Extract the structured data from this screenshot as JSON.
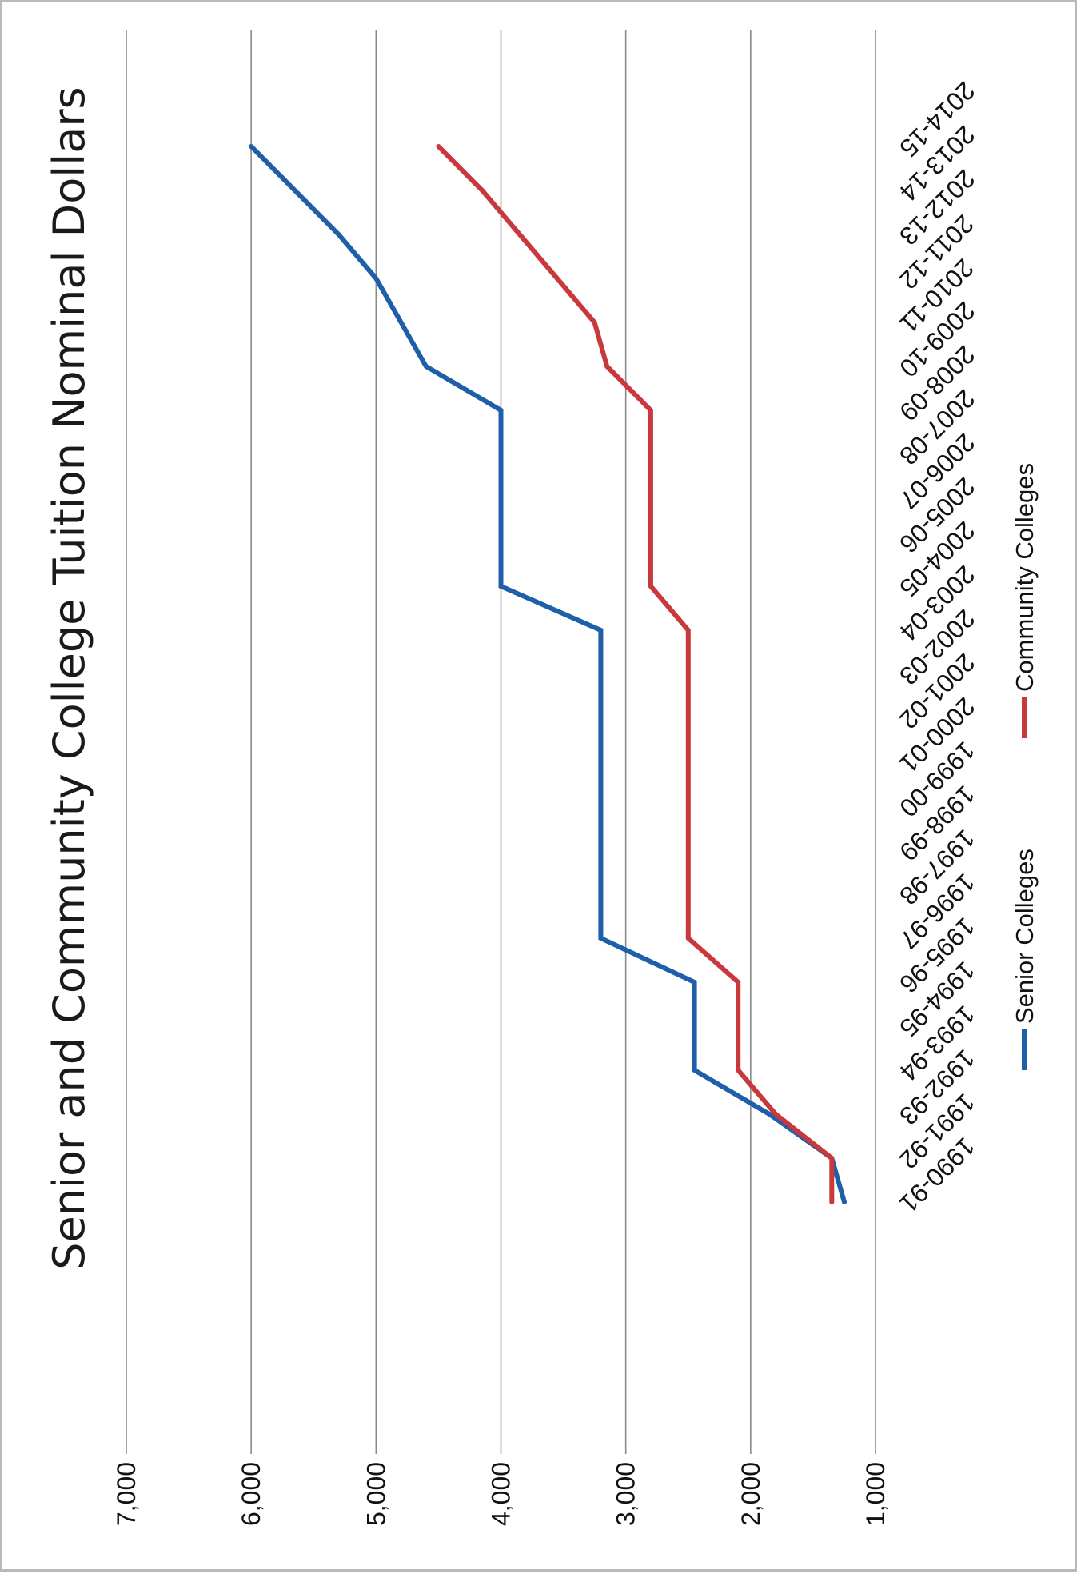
{
  "chart_data": {
    "type": "line",
    "title": "Senior and Community College Tuition Nominal Dollars",
    "xlabel": "",
    "ylabel": "",
    "ylim": [
      1000,
      7000
    ],
    "y_ticks": [
      "1,000",
      "2,000",
      "3,000",
      "4,000",
      "5,000",
      "6,000",
      "7,000"
    ],
    "y_tick_values": [
      1000,
      2000,
      3000,
      4000,
      5000,
      6000,
      7000
    ],
    "grid": true,
    "legend_position": "bottom",
    "orientation": "rotated 90 degrees counter-clockwise",
    "categories": [
      "1990-91",
      "1991-92",
      "1992-93",
      "1993-94",
      "1994-95",
      "1995-96",
      "1996-97",
      "1997-98",
      "1998-99",
      "1999-00",
      "2000-01",
      "2001-02",
      "2002-03",
      "2003-04",
      "2004-05",
      "2005-06",
      "2006-07",
      "2007-08",
      "2008-09",
      "2009-10",
      "2010-11",
      "2011-12",
      "2012-13",
      "2013-14",
      "2014-15"
    ],
    "series": [
      {
        "name": "Senior Colleges",
        "color": "#1f5faa",
        "values": [
          1250,
          1350,
          1850,
          2450,
          2450,
          2450,
          3200,
          3200,
          3200,
          3200,
          3200,
          3200,
          3200,
          3200,
          4000,
          4000,
          4000,
          4000,
          4000,
          4600,
          4800,
          5000,
          5300,
          5650,
          6000
        ]
      },
      {
        "name": "Community Colleges",
        "color": "#c8383c",
        "values": [
          1350,
          1350,
          1800,
          2100,
          2100,
          2100,
          2500,
          2500,
          2500,
          2500,
          2500,
          2500,
          2500,
          2500,
          2800,
          2800,
          2800,
          2800,
          2800,
          3150,
          3250,
          3550,
          3850,
          4150,
          4500
        ]
      }
    ]
  }
}
